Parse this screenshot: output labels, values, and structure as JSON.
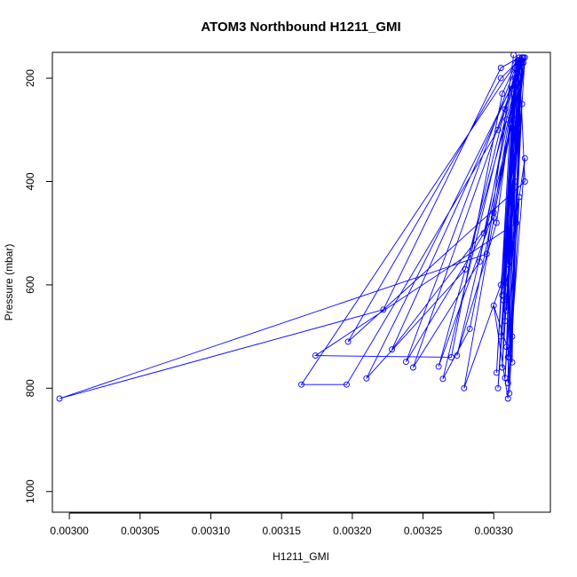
{
  "chart_data": {
    "type": "line",
    "title": "ATOM3 Northbound H1211_GMI",
    "xlabel": "H1211_GMI",
    "ylabel": "Pressure (mbar)",
    "xlim": [
      0.002988,
      0.00334
    ],
    "ylim": [
      1040,
      150
    ],
    "y_reversed": true,
    "x_ticks": [
      {
        "value": 0.003,
        "label": "0.00300"
      },
      {
        "value": 0.00305,
        "label": "0.00305"
      },
      {
        "value": 0.0031,
        "label": "0.00310"
      },
      {
        "value": 0.00315,
        "label": "0.00315"
      },
      {
        "value": 0.0032,
        "label": "0.00320"
      },
      {
        "value": 0.00325,
        "label": "0.00325"
      },
      {
        "value": 0.0033,
        "label": "0.00330"
      }
    ],
    "y_ticks": [
      {
        "value": 200,
        "label": "200"
      },
      {
        "value": 400,
        "label": "400"
      },
      {
        "value": 600,
        "label": "600"
      },
      {
        "value": 800,
        "label": "800"
      },
      {
        "value": 1000,
        "label": "1000"
      }
    ],
    "grid": false,
    "legend": "none",
    "color": "#0000ff",
    "marker": "open-circle",
    "series": [
      {
        "x": [
          0.003314,
          0.003295,
          0.002993,
          0.003222,
          0.003305,
          0.003318,
          0.003322,
          0.003197,
          0.003305,
          0.00332,
          0.003316,
          0.003174,
          0.00327,
          0.003306,
          0.003317,
          0.003164,
          0.003196,
          0.003303,
          0.00332,
          0.003228,
          0.0033,
          0.003321,
          0.00321,
          0.00328,
          0.003308,
          0.003318,
          0.003238,
          0.003293,
          0.003319,
          0.003243,
          0.00329,
          0.003309,
          0.003321,
          0.003261,
          0.0033,
          0.003318,
          0.003264,
          0.003283,
          0.003312,
          0.003274,
          0.003302,
          0.003317,
          0.003303,
          0.00332,
          0.003279,
          0.003305,
          0.003312,
          0.003322,
          0.003308,
          0.003318,
          0.003305,
          0.00332,
          0.003306,
          0.003315,
          0.003302,
          0.003313,
          0.00331,
          0.003322,
          0.003307,
          0.003316,
          0.003313,
          0.0033,
          0.00331,
          0.00332,
          0.003307,
          0.003315,
          0.003309,
          0.003318,
          0.003311,
          0.00332,
          0.003308,
          0.003316,
          0.003312,
          0.003321,
          0.00331,
          0.003317,
          0.003306,
          0.003315,
          0.003311,
          0.00332,
          0.003313,
          0.003316,
          0.003309,
          0.003312,
          0.003318,
          0.00331,
          0.003315,
          0.003307,
          0.003316
        ],
        "y": [
          155,
          540,
          820,
          648,
          180,
          160,
          400,
          710,
          200,
          160,
          480,
          737,
          740,
          230,
          165,
          793,
          793,
          300,
          170,
          725,
          470,
          170,
          781,
          570,
          260,
          160,
          749,
          500,
          170,
          760,
          555,
          280,
          160,
          758,
          460,
          165,
          782,
          685,
          290,
          737,
          480,
          170,
          800,
          160,
          800,
          600,
          410,
          160,
          780,
          170,
          700,
          160,
          760,
          180,
          770,
          220,
          790,
          355,
          630,
          200,
          750,
          640,
          820,
          250,
          600,
          180,
          720,
          430,
          810,
          165,
          670,
          300,
          520,
          160,
          560,
          240,
          620,
          200,
          740,
          160,
          700,
          280,
          650,
          520,
          200,
          740,
          400,
          620,
          170
        ]
      }
    ]
  }
}
